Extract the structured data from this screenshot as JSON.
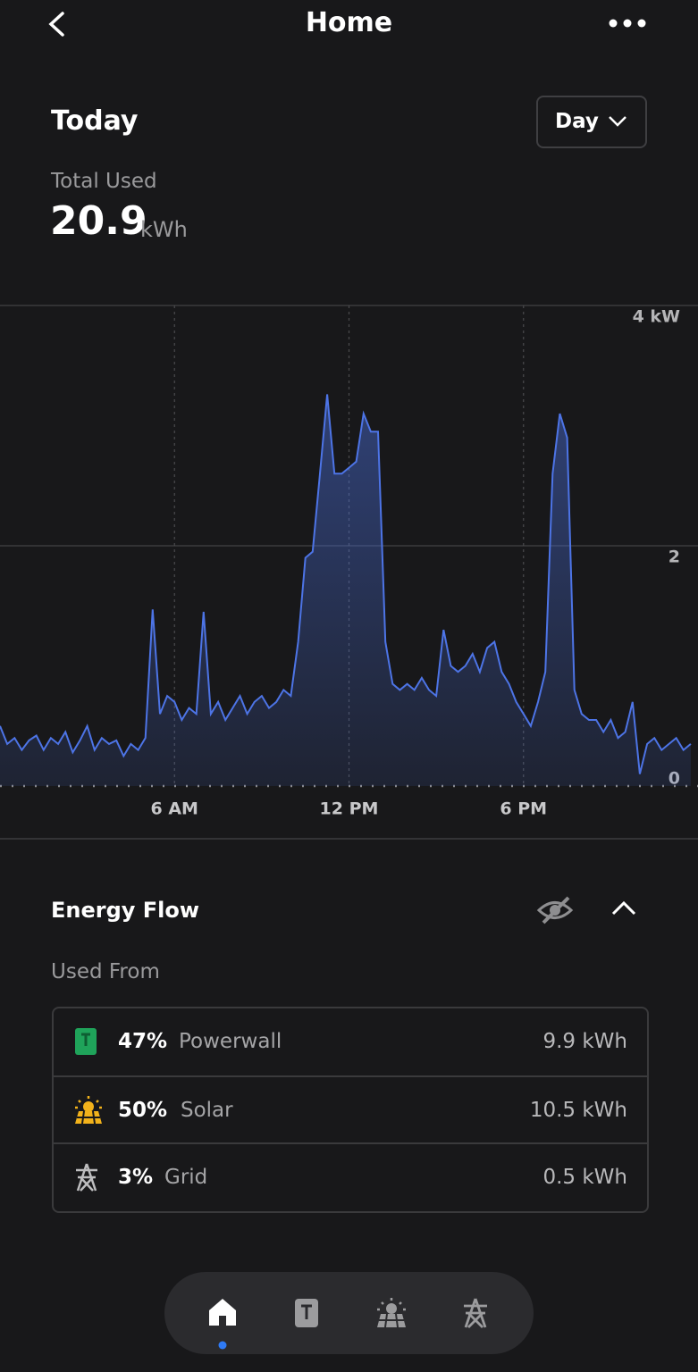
{
  "header": {
    "title": "Home"
  },
  "summary": {
    "period": "Today",
    "range_button": "Day",
    "label": "Total Used",
    "value": "20.9",
    "unit": "kWh"
  },
  "chart_data": {
    "type": "area",
    "color": "#4d74e6",
    "x": [
      0,
      0.25,
      0.5,
      0.75,
      1,
      1.25,
      1.5,
      1.75,
      2,
      2.25,
      2.5,
      2.75,
      3,
      3.25,
      3.5,
      3.75,
      4,
      4.25,
      4.5,
      4.75,
      5,
      5.25,
      5.5,
      5.75,
      6,
      6.25,
      6.5,
      6.75,
      7,
      7.25,
      7.5,
      7.75,
      8,
      8.25,
      8.5,
      8.75,
      9,
      9.25,
      9.5,
      9.75,
      10,
      10.25,
      10.5,
      10.75,
      11,
      11.25,
      11.5,
      11.75,
      12,
      12.25,
      12.5,
      12.75,
      13,
      13.25,
      13.5,
      13.75,
      14,
      14.25,
      14.5,
      14.75,
      15,
      15.25,
      15.5,
      15.75,
      16,
      16.25,
      16.5,
      16.75,
      17,
      17.25,
      17.5,
      17.75,
      18,
      18.25,
      18.5,
      18.75,
      19,
      19.25,
      19.5,
      19.75,
      20,
      20.25,
      20.5,
      20.75,
      21,
      21.25,
      21.5,
      21.75,
      22,
      22.25,
      22.5,
      22.75,
      23,
      23.25,
      23.5,
      23.75
    ],
    "values": [
      0.5,
      0.35,
      0.4,
      0.3,
      0.38,
      0.42,
      0.3,
      0.4,
      0.35,
      0.45,
      0.28,
      0.38,
      0.5,
      0.3,
      0.4,
      0.35,
      0.38,
      0.25,
      0.35,
      0.3,
      0.4,
      1.47,
      0.6,
      0.75,
      0.7,
      0.55,
      0.65,
      0.6,
      1.45,
      0.6,
      0.7,
      0.55,
      0.65,
      0.75,
      0.6,
      0.7,
      0.75,
      0.65,
      0.7,
      0.8,
      0.75,
      1.2,
      1.9,
      1.95,
      2.6,
      3.26,
      2.6,
      2.6,
      2.65,
      2.7,
      3.1,
      2.95,
      2.95,
      1.2,
      0.85,
      0.8,
      0.85,
      0.8,
      0.9,
      0.8,
      0.75,
      1.3,
      1.0,
      0.95,
      1.0,
      1.1,
      0.95,
      1.15,
      1.2,
      0.95,
      0.85,
      0.7,
      0.6,
      0.5,
      0.7,
      0.95,
      2.6,
      3.1,
      2.9,
      0.8,
      0.6,
      0.55,
      0.55,
      0.45,
      0.55,
      0.4,
      0.45,
      0.7,
      0.1,
      0.35,
      0.4,
      0.3,
      0.35,
      0.4,
      0.3,
      0.35
    ],
    "xlim": [
      0,
      24
    ],
    "xticks": [
      {
        "value": 6,
        "label": "6 AM"
      },
      {
        "value": 12,
        "label": "12 PM"
      },
      {
        "value": 18,
        "label": "6 PM"
      }
    ],
    "ylim": [
      0,
      4
    ],
    "yticks": [
      0,
      2,
      {
        "value": 4,
        "label": "4 kW"
      }
    ],
    "grid": true
  },
  "energy_flow": {
    "title": "Energy Flow",
    "subtitle": "Used From",
    "rows": [
      {
        "percent": "47%",
        "source": "Powerwall",
        "amount": "9.9 kWh"
      },
      {
        "percent": "50%",
        "source": "Solar",
        "amount": "10.5 kWh"
      },
      {
        "percent": "3%",
        "source": "Grid",
        "amount": "0.5 kWh"
      }
    ]
  }
}
